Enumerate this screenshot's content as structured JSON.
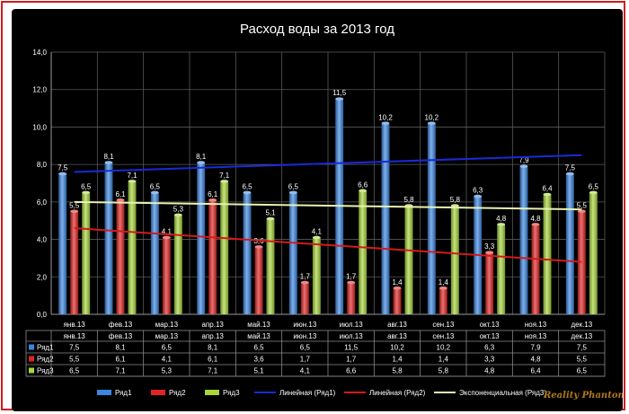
{
  "chart_data": {
    "type": "bar",
    "title": "Расход воды за 2013 год",
    "categories": [
      "янв.13",
      "фев.13",
      "мар.13",
      "апр.13",
      "май.13",
      "июн.13",
      "июл.13",
      "авг.13",
      "сен.13",
      "окт.13",
      "ноя.13",
      "дек.13"
    ],
    "ylim": [
      0,
      14
    ],
    "yticks": [
      "0,0",
      "2,0",
      "4,0",
      "6,0",
      "8,0",
      "10,0",
      "12,0",
      "14,0"
    ],
    "grid": true,
    "legend_position": "bottom",
    "series": [
      {
        "name": "Ряд1",
        "color": "#3a86e0",
        "values": [
          7.5,
          8.1,
          6.5,
          8.1,
          6.5,
          6.5,
          11.5,
          10.2,
          10.2,
          6.3,
          7.9,
          7.5
        ],
        "labels": [
          "7,5",
          "8,1",
          "6,5",
          "8,1",
          "6,5",
          "6,5",
          "11,5",
          "10,2",
          "10,2",
          "6,3",
          "7,9",
          "7,5"
        ]
      },
      {
        "name": "Ряд2",
        "color": "#e02424",
        "values": [
          5.5,
          6.1,
          4.1,
          6.1,
          3.6,
          1.7,
          1.7,
          1.4,
          1.4,
          3.3,
          4.8,
          5.5
        ],
        "labels": [
          "5,5",
          "6,1",
          "4,1",
          "6,1",
          "3,6",
          "1,7",
          "1,7",
          "1,4",
          "1,4",
          "3,3",
          "4,8",
          "5,5"
        ]
      },
      {
        "name": "Ряд3",
        "color": "#a8d63a",
        "values": [
          6.5,
          7.1,
          5.3,
          7.1,
          5.1,
          4.1,
          6.6,
          5.8,
          5.8,
          4.8,
          6.4,
          6.5
        ],
        "labels": [
          "6,5",
          "7,1",
          "5,3",
          "7,1",
          "5,1",
          "4,1",
          "6,6",
          "5,8",
          "5,8",
          "4,8",
          "6,4",
          "6,5"
        ]
      }
    ],
    "trendlines": [
      {
        "name": "Линейная (Ряд1)",
        "color": "#1a2ad8",
        "start": 7.6,
        "end": 8.5
      },
      {
        "name": "Линейная (Ряд2)",
        "color": "#d41a1a",
        "start": 4.6,
        "end": 2.8
      },
      {
        "name": "Экспоненциальная (Ряд3)",
        "color": "#e8f0b0",
        "start": 6.0,
        "end": 5.6
      }
    ],
    "table": {
      "rows": [
        {
          "series": "Ряд1",
          "cells": [
            "7,5",
            "8,1",
            "6,5",
            "8,1",
            "6,5",
            "6,5",
            "11,5",
            "10,2",
            "10,2",
            "6,3",
            "7,9",
            "7,5"
          ]
        },
        {
          "series": "Ряд2",
          "cells": [
            "5,5",
            "6,1",
            "4,1",
            "6,1",
            "3,6",
            "1,7",
            "1,7",
            "1,4",
            "1,4",
            "3,3",
            "4,8",
            "5,5"
          ]
        },
        {
          "series": "Ряд3",
          "cells": [
            "6,5",
            "7,1",
            "5,3",
            "7,1",
            "5,1",
            "4,1",
            "6,6",
            "5,8",
            "5,8",
            "4,8",
            "6,4",
            "6,5"
          ]
        }
      ]
    }
  },
  "watermark": "Reality Phantom"
}
